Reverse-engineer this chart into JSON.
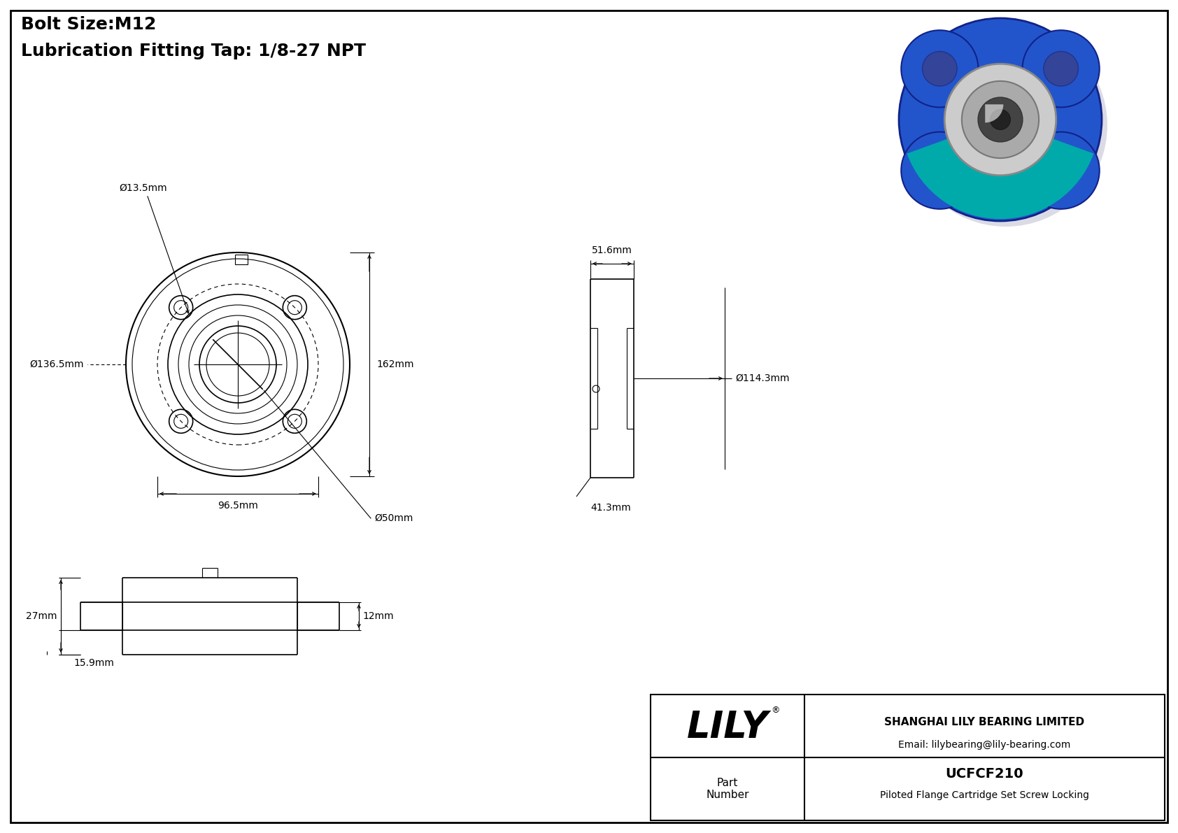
{
  "bg_color": "#ffffff",
  "line_color": "#000000",
  "title_line1": "Bolt Size:M12",
  "title_line2": "Lubrication Fitting Tap: 1/8-27 NPT",
  "title_fontsize": 18,
  "dim_fontsize": 10,
  "company_name": "SHANGHAI LILY BEARING LIMITED",
  "company_email": "Email: lilybearing@lily-bearing.com",
  "brand": "LILY",
  "registered": "®",
  "part_label": "Part\nNumber",
  "part_number": "UCFCF210",
  "part_desc": "Piloted Flange Cartridge Set Screw Locking",
  "dims": {
    "bolt_hole_d": "Ø13.5mm",
    "flange_od": "Ø136.5mm",
    "bolt_circle": "96.5mm",
    "bore_d": "Ø50mm",
    "height": "162mm",
    "side_width": "51.6mm",
    "side_height": "41.3mm",
    "bearing_d": "Ø114.3mm",
    "bottom_h1": "27mm",
    "bottom_h2": "12mm",
    "bottom_h3": "15.9mm"
  }
}
